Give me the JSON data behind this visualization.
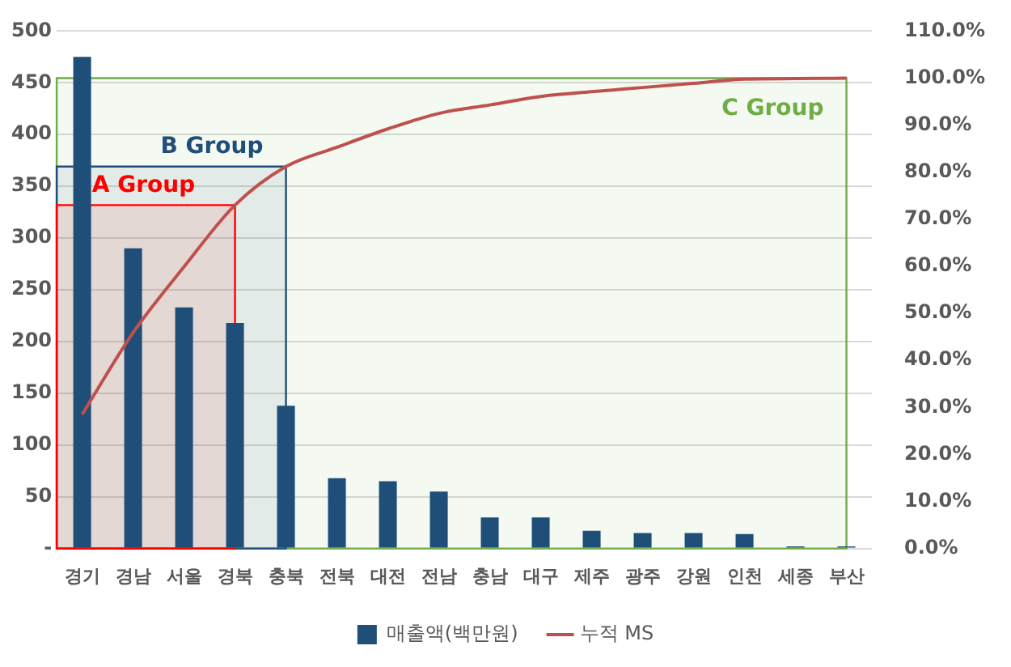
{
  "chart_data": {
    "type": "bar",
    "categories": [
      "경기",
      "경남",
      "서울",
      "경북",
      "충북",
      "전북",
      "대전",
      "전남",
      "충남",
      "대구",
      "제주",
      "광주",
      "강원",
      "인천",
      "세종",
      "부산"
    ],
    "series": [
      {
        "name": "매출액(백만원)",
        "color": "#1f4e79",
        "values": [
          475,
          290,
          233,
          218,
          138,
          68,
          65,
          55,
          30,
          30,
          17,
          15,
          15,
          14,
          2,
          2
        ]
      },
      {
        "name": "누적 MS",
        "type": "line",
        "axis": "y2",
        "color": "#c0504d",
        "marker": "none",
        "values": [
          28.5,
          45.9,
          59.9,
          73.0,
          81.2,
          85.3,
          89.2,
          92.5,
          94.3,
          96.1,
          97.1,
          98.0,
          98.9,
          99.8,
          99.9,
          100.0
        ]
      }
    ],
    "ylim": [
      0,
      500
    ],
    "yticks": [
      {
        "value": 0,
        "label": "-"
      },
      50,
      100,
      150,
      200,
      250,
      300,
      350,
      400,
      450,
      500
    ],
    "y2lim": [
      0,
      110
    ],
    "y2ticks": [
      {
        "value": 0,
        "label": "0.0%"
      },
      {
        "value": 10,
        "label": "10.0%"
      },
      {
        "value": 20,
        "label": "20.0%"
      },
      {
        "value": 30,
        "label": "30.0%"
      },
      {
        "value": 40,
        "label": "40.0%"
      },
      {
        "value": 50,
        "label": "50.0%"
      },
      {
        "value": 60,
        "label": "60.0%"
      },
      {
        "value": 70,
        "label": "70.0%"
      },
      {
        "value": 80,
        "label": "80.0%"
      },
      {
        "value": 90,
        "label": "90.0%"
      },
      {
        "value": 100,
        "label": "100.0%"
      },
      {
        "value": 110,
        "label": "110.0%"
      }
    ],
    "bands": [
      {
        "axis": "x",
        "from": "경기",
        "to": "부산",
        "label": "C Group",
        "color": "#70ad47"
      },
      {
        "axis": "x",
        "from": "경기",
        "to": "충북",
        "label": "B Group",
        "color": "#1f4e79"
      },
      {
        "axis": "x",
        "from": "경기",
        "to": "경북",
        "label": "A Group",
        "color": "#ff0000"
      }
    ],
    "grid": "y",
    "legend": "bottom"
  }
}
